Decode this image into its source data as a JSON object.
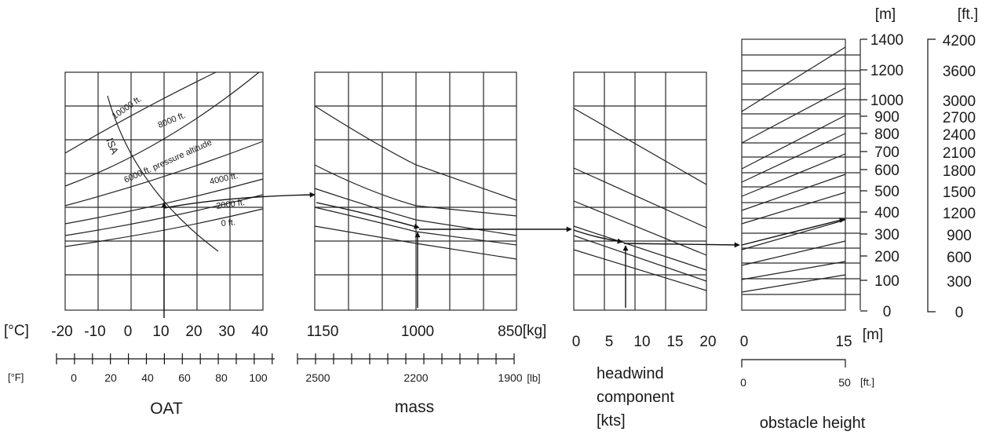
{
  "chart_data": {
    "type": "line",
    "panels": {
      "oat": {
        "celsius_ticks": [
          "-20",
          "-10",
          "0",
          "10",
          "20",
          "30",
          "40"
        ],
        "fahrenheit_ticks": [
          "0",
          "20",
          "40",
          "60",
          "80",
          "100"
        ],
        "unit_c": "[°C]",
        "unit_f": "[°F]",
        "xlabel": "OAT",
        "curve_labels": [
          "10000 ft.",
          "8000 ft.",
          "6000 ft. pressure altitude",
          "4000 ft.",
          "2000 ft.",
          "0 ft.",
          "ISA"
        ]
      },
      "mass": {
        "kg_ticks": [
          "1150",
          "1000",
          "850"
        ],
        "kg_unit": "[kg]",
        "lb_ticks": [
          "2500",
          "2200",
          "1900"
        ],
        "lb_unit": "[lb]",
        "xlabel": "mass"
      },
      "wind": {
        "ticks": [
          "0",
          "5",
          "10",
          "15",
          "20"
        ],
        "xlabel": [
          "headwind",
          "component",
          "[kts]"
        ]
      },
      "obstacle": {
        "m_ticks": [
          "0",
          "15"
        ],
        "m_unit": "[m]",
        "ft_ticks": [
          "0",
          "50"
        ],
        "ft_unit": "[ft.]",
        "xlabel": "obstacle height"
      }
    },
    "y_axis_m": {
      "unit": "[m]",
      "ticks": [
        "1400",
        "1200",
        "1000",
        "900",
        "800",
        "700",
        "600",
        "500",
        "400",
        "300",
        "200",
        "100",
        "0"
      ]
    },
    "y_axis_ft": {
      "unit": "[ft.]",
      "ticks": [
        "4200",
        "3600",
        "3000",
        "2700",
        "2400",
        "2100",
        "1800",
        "1500",
        "1200",
        "900",
        "600",
        "300",
        "0"
      ]
    },
    "example": {
      "oat_c": 10,
      "pressure_altitude_ft": 2000,
      "mass_kg": 1000,
      "headwind_kts": 8,
      "obstacle_m": 15,
      "result_m": 380
    }
  }
}
